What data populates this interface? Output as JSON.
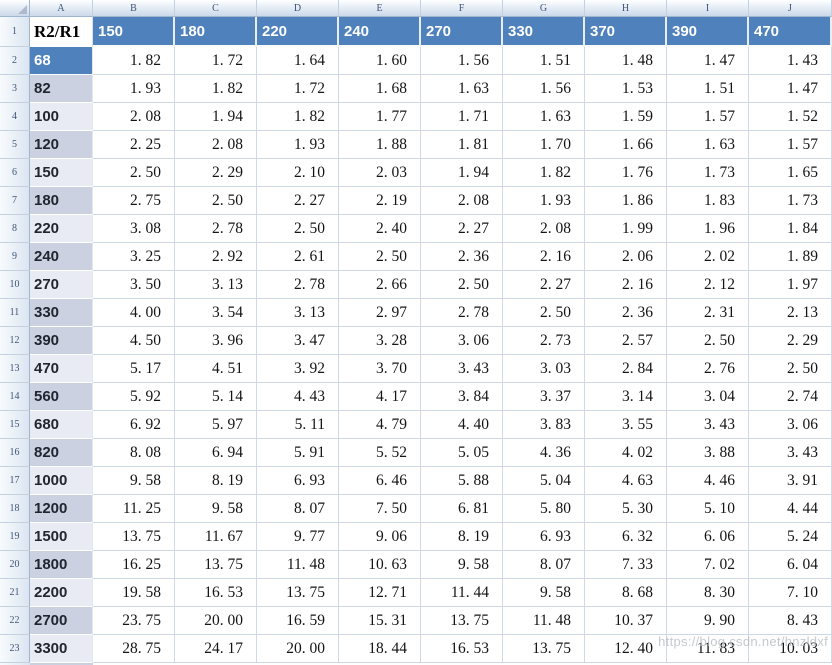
{
  "colors": {
    "header_blue": "#4f81bd",
    "band_dark": "#ccd1e2",
    "band_light": "#e9ebf4",
    "gridline": "#cfd8e6",
    "header_chrome_border": "#9eb6ce",
    "header_chrome_text": "#3f5577"
  },
  "watermark": {
    "text": "https://blog.csdn.net/hnzldxf"
  },
  "sheet": {
    "column_letters": [
      "A",
      "B",
      "C",
      "D",
      "E",
      "F",
      "G",
      "H",
      "I",
      "J"
    ],
    "r1": {
      "n": "1",
      "a": "R2/R1",
      "headers": [
        "150",
        "180",
        "220",
        "240",
        "270",
        "330",
        "370",
        "390",
        "470"
      ]
    },
    "rows": [
      {
        "n": "2",
        "label": "68",
        "shade": "blue",
        "values": [
          "1. 82",
          "1. 72",
          "1. 64",
          "1. 60",
          "1. 56",
          "1. 51",
          "1. 48",
          "1. 47",
          "1. 43"
        ]
      },
      {
        "n": "3",
        "label": "82",
        "shade": "dark",
        "values": [
          "1. 93",
          "1. 82",
          "1. 72",
          "1. 68",
          "1. 63",
          "1. 56",
          "1. 53",
          "1. 51",
          "1. 47"
        ]
      },
      {
        "n": "4",
        "label": "100",
        "shade": "light",
        "values": [
          "2. 08",
          "1. 94",
          "1. 82",
          "1. 77",
          "1. 71",
          "1. 63",
          "1. 59",
          "1. 57",
          "1. 52"
        ]
      },
      {
        "n": "5",
        "label": "120",
        "shade": "dark",
        "values": [
          "2. 25",
          "2. 08",
          "1. 93",
          "1. 88",
          "1. 81",
          "1. 70",
          "1. 66",
          "1. 63",
          "1. 57"
        ]
      },
      {
        "n": "6",
        "label": "150",
        "shade": "light",
        "values": [
          "2. 50",
          "2. 29",
          "2. 10",
          "2. 03",
          "1. 94",
          "1. 82",
          "1. 76",
          "1. 73",
          "1. 65"
        ]
      },
      {
        "n": "7",
        "label": "180",
        "shade": "dark",
        "values": [
          "2. 75",
          "2. 50",
          "2. 27",
          "2. 19",
          "2. 08",
          "1. 93",
          "1. 86",
          "1. 83",
          "1. 73"
        ]
      },
      {
        "n": "8",
        "label": "220",
        "shade": "light",
        "values": [
          "3. 08",
          "2. 78",
          "2. 50",
          "2. 40",
          "2. 27",
          "2. 08",
          "1. 99",
          "1. 96",
          "1. 84"
        ]
      },
      {
        "n": "9",
        "label": "240",
        "shade": "dark",
        "values": [
          "3. 25",
          "2. 92",
          "2. 61",
          "2. 50",
          "2. 36",
          "2. 16",
          "2. 06",
          "2. 02",
          "1. 89"
        ]
      },
      {
        "n": "10",
        "label": "270",
        "shade": "light",
        "values": [
          "3. 50",
          "3. 13",
          "2. 78",
          "2. 66",
          "2. 50",
          "2. 27",
          "2. 16",
          "2. 12",
          "1. 97"
        ]
      },
      {
        "n": "11",
        "label": "330",
        "shade": "dark",
        "values": [
          "4. 00",
          "3. 54",
          "3. 13",
          "2. 97",
          "2. 78",
          "2. 50",
          "2. 36",
          "2. 31",
          "2. 13"
        ]
      },
      {
        "n": "12",
        "label": "390",
        "shade": "dark",
        "values": [
          "4. 50",
          "3. 96",
          "3. 47",
          "3. 28",
          "3. 06",
          "2. 73",
          "2. 57",
          "2. 50",
          "2. 29"
        ]
      },
      {
        "n": "13",
        "label": "470",
        "shade": "light",
        "values": [
          "5. 17",
          "4. 51",
          "3. 92",
          "3. 70",
          "3. 43",
          "3. 03",
          "2. 84",
          "2. 76",
          "2. 50"
        ]
      },
      {
        "n": "14",
        "label": "560",
        "shade": "dark",
        "values": [
          "5. 92",
          "5. 14",
          "4. 43",
          "4. 17",
          "3. 84",
          "3. 37",
          "3. 14",
          "3. 04",
          "2. 74"
        ]
      },
      {
        "n": "15",
        "label": "680",
        "shade": "light",
        "values": [
          "6. 92",
          "5. 97",
          "5. 11",
          "4. 79",
          "4. 40",
          "3. 83",
          "3. 55",
          "3. 43",
          "3. 06"
        ]
      },
      {
        "n": "16",
        "label": "820",
        "shade": "dark",
        "values": [
          "8. 08",
          "6. 94",
          "5. 91",
          "5. 52",
          "5. 05",
          "4. 36",
          "4. 02",
          "3. 88",
          "3. 43"
        ]
      },
      {
        "n": "17",
        "label": "1000",
        "shade": "light",
        "values": [
          "9. 58",
          "8. 19",
          "6. 93",
          "6. 46",
          "5. 88",
          "5. 04",
          "4. 63",
          "4. 46",
          "3. 91"
        ]
      },
      {
        "n": "18",
        "label": "1200",
        "shade": "dark",
        "values": [
          "11. 25",
          "9. 58",
          "8. 07",
          "7. 50",
          "6. 81",
          "5. 80",
          "5. 30",
          "5. 10",
          "4. 44"
        ]
      },
      {
        "n": "19",
        "label": "1500",
        "shade": "light",
        "values": [
          "13. 75",
          "11. 67",
          "9. 77",
          "9. 06",
          "8. 19",
          "6. 93",
          "6. 32",
          "6. 06",
          "5. 24"
        ]
      },
      {
        "n": "20",
        "label": "1800",
        "shade": "dark",
        "values": [
          "16. 25",
          "13. 75",
          "11. 48",
          "10. 63",
          "9. 58",
          "8. 07",
          "7. 33",
          "7. 02",
          "6. 04"
        ]
      },
      {
        "n": "21",
        "label": "2200",
        "shade": "light",
        "values": [
          "19. 58",
          "16. 53",
          "13. 75",
          "12. 71",
          "11. 44",
          "9. 58",
          "8. 68",
          "8. 30",
          "7. 10"
        ]
      },
      {
        "n": "22",
        "label": "2700",
        "shade": "dark",
        "values": [
          "23. 75",
          "20. 00",
          "16. 59",
          "15. 31",
          "13. 75",
          "11. 48",
          "10. 37",
          "9. 90",
          "8. 43"
        ]
      },
      {
        "n": "23",
        "label": "3300",
        "shade": "light",
        "values": [
          "28. 75",
          "24. 17",
          "20. 00",
          "18. 44",
          "16. 53",
          "13. 75",
          "12. 40",
          "11. 83",
          "10. 03"
        ]
      }
    ]
  }
}
